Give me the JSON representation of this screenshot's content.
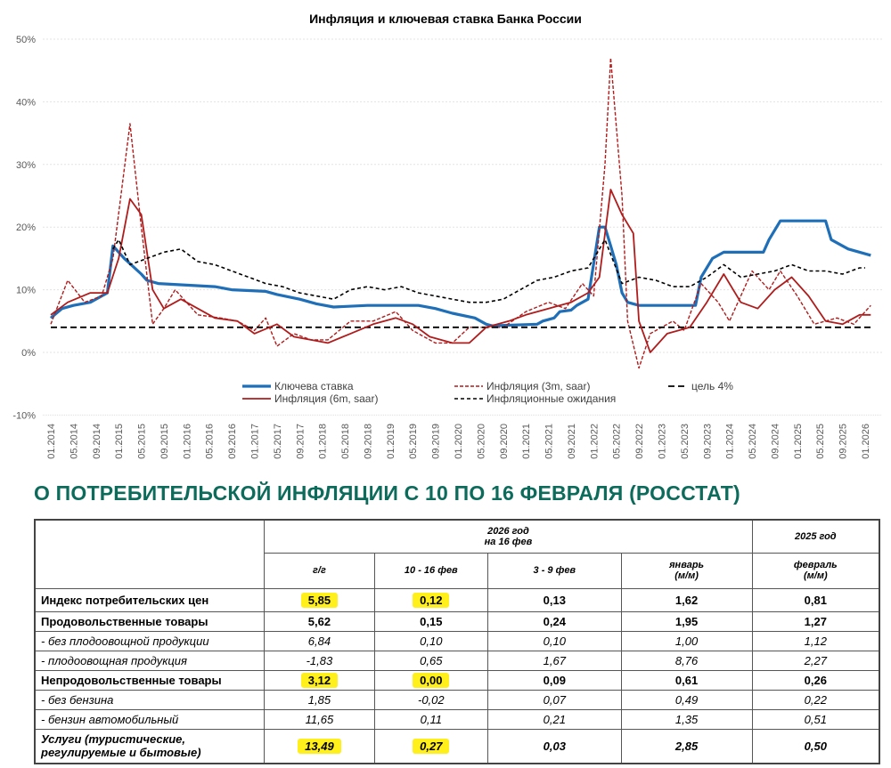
{
  "chart_data": {
    "type": "line",
    "title": "Инфляция и ключевая ставка Банка России",
    "ylim": [
      -10,
      50
    ],
    "yticks": [
      "-10%",
      "0%",
      "10%",
      "20%",
      "30%",
      "40%",
      "50%"
    ],
    "ytick_values": [
      -10,
      0,
      10,
      20,
      30,
      40,
      50
    ],
    "xrange": [
      "2014-01",
      "2026-02"
    ],
    "xticks": [
      "01.2014",
      "05.2014",
      "09.2014",
      "01.2015",
      "05.2015",
      "09.2015",
      "01.2016",
      "05.2016",
      "09.2016",
      "01.2017",
      "05.2017",
      "09.2017",
      "01.2018",
      "05.2018",
      "09.2018",
      "01.2019",
      "05.2019",
      "09.2019",
      "01.2020",
      "05.2020",
      "09.2020",
      "01.2021",
      "05.2021",
      "09.2021",
      "01.2022",
      "05.2022",
      "09.2022",
      "01.2023",
      "05.2023",
      "09.2023",
      "01.2024",
      "05.2024",
      "09.2024",
      "01.2025",
      "05.2025",
      "09.2025",
      "01.2026"
    ],
    "grid": true,
    "legend_placement": "bottom",
    "series": [
      {
        "name": "Ключева ставка",
        "color": "#1f6fb8",
        "style": "solid-thick",
        "points": [
          [
            "2014-01",
            5.5
          ],
          [
            "2014-03",
            7
          ],
          [
            "2014-05",
            7.5
          ],
          [
            "2014-08",
            8
          ],
          [
            "2014-11",
            9.5
          ],
          [
            "2014-12",
            17
          ],
          [
            "2015-02",
            15
          ],
          [
            "2015-05",
            12.5
          ],
          [
            "2015-06",
            11.5
          ],
          [
            "2015-08",
            11
          ],
          [
            "2016-06",
            10.5
          ],
          [
            "2016-09",
            10
          ],
          [
            "2017-03",
            9.75
          ],
          [
            "2017-05",
            9.25
          ],
          [
            "2017-09",
            8.5
          ],
          [
            "2017-12",
            7.75
          ],
          [
            "2018-03",
            7.25
          ],
          [
            "2018-09",
            7.5
          ],
          [
            "2019-06",
            7.5
          ],
          [
            "2019-09",
            7
          ],
          [
            "2019-12",
            6.25
          ],
          [
            "2020-04",
            5.5
          ],
          [
            "2020-06",
            4.5
          ],
          [
            "2020-07",
            4.25
          ],
          [
            "2021-03",
            4.5
          ],
          [
            "2021-04",
            5
          ],
          [
            "2021-06",
            5.5
          ],
          [
            "2021-07",
            6.5
          ],
          [
            "2021-09",
            6.75
          ],
          [
            "2021-10",
            7.5
          ],
          [
            "2021-12",
            8.5
          ],
          [
            "2022-02",
            20
          ],
          [
            "2022-03",
            20
          ],
          [
            "2022-04",
            17
          ],
          [
            "2022-05",
            14
          ],
          [
            "2022-06",
            9.5
          ],
          [
            "2022-07",
            8
          ],
          [
            "2022-09",
            7.5
          ],
          [
            "2023-07",
            7.5
          ],
          [
            "2023-08",
            12
          ],
          [
            "2023-10",
            15
          ],
          [
            "2023-12",
            16
          ],
          [
            "2024-07",
            16
          ],
          [
            "2024-08",
            18
          ],
          [
            "2024-10",
            21
          ],
          [
            "2025-06",
            21
          ],
          [
            "2025-07",
            18
          ],
          [
            "2025-09",
            17
          ],
          [
            "2025-10",
            16.5
          ],
          [
            "2026-02",
            15.5
          ]
        ]
      },
      {
        "name": "Инфляция (3m, saar)",
        "color": "#b01c1c",
        "style": "dashed",
        "points": [
          [
            "2014-01",
            4.5
          ],
          [
            "2014-04",
            11.5
          ],
          [
            "2014-07",
            8
          ],
          [
            "2014-10",
            9
          ],
          [
            "2014-12",
            15
          ],
          [
            "2015-03",
            36.5
          ],
          [
            "2015-05",
            20
          ],
          [
            "2015-07",
            4.5
          ],
          [
            "2015-09",
            7
          ],
          [
            "2015-11",
            10
          ],
          [
            "2016-03",
            6
          ],
          [
            "2016-07",
            5.5
          ],
          [
            "2016-10",
            5
          ],
          [
            "2017-01",
            3.5
          ],
          [
            "2017-03",
            5.5
          ],
          [
            "2017-05",
            1
          ],
          [
            "2017-08",
            3
          ],
          [
            "2017-11",
            2
          ],
          [
            "2018-02",
            2
          ],
          [
            "2018-06",
            5
          ],
          [
            "2018-10",
            5
          ],
          [
            "2019-02",
            6.5
          ],
          [
            "2019-05",
            3.5
          ],
          [
            "2019-09",
            1.5
          ],
          [
            "2019-12",
            1.5
          ],
          [
            "2020-03",
            4
          ],
          [
            "2020-06",
            4
          ],
          [
            "2020-09",
            4
          ],
          [
            "2021-01",
            6.5
          ],
          [
            "2021-05",
            8
          ],
          [
            "2021-08",
            7
          ],
          [
            "2021-11",
            11
          ],
          [
            "2022-01",
            9
          ],
          [
            "2022-03",
            30
          ],
          [
            "2022-04",
            47
          ],
          [
            "2022-06",
            25
          ],
          [
            "2022-07",
            5
          ],
          [
            "2022-09",
            -2.5
          ],
          [
            "2022-11",
            3
          ],
          [
            "2023-03",
            5
          ],
          [
            "2023-05",
            3.5
          ],
          [
            "2023-08",
            11
          ],
          [
            "2023-11",
            8
          ],
          [
            "2024-01",
            5
          ],
          [
            "2024-05",
            13
          ],
          [
            "2024-08",
            10
          ],
          [
            "2024-10",
            13
          ],
          [
            "2025-01",
            9
          ],
          [
            "2025-04",
            4.5
          ],
          [
            "2025-08",
            5.5
          ],
          [
            "2025-11",
            4.5
          ],
          [
            "2026-02",
            7.5
          ]
        ]
      },
      {
        "name": "цель 4%",
        "color": "#000000",
        "style": "dashed-long",
        "points": [
          [
            "2014-01",
            4
          ],
          [
            "2026-02",
            4
          ]
        ]
      },
      {
        "name": "Инфляция (6m, saar)",
        "color": "#b01c1c",
        "style": "solid",
        "points": [
          [
            "2014-01",
            6
          ],
          [
            "2014-04",
            8
          ],
          [
            "2014-08",
            9.5
          ],
          [
            "2014-11",
            9.5
          ],
          [
            "2015-01",
            15
          ],
          [
            "2015-03",
            24.5
          ],
          [
            "2015-05",
            22
          ],
          [
            "2015-07",
            10
          ],
          [
            "2015-09",
            7
          ],
          [
            "2015-12",
            8.5
          ],
          [
            "2016-02",
            7.5
          ],
          [
            "2016-06",
            5.5
          ],
          [
            "2016-10",
            5
          ],
          [
            "2017-01",
            3
          ],
          [
            "2017-05",
            4.5
          ],
          [
            "2017-08",
            2.5
          ],
          [
            "2017-11",
            2
          ],
          [
            "2018-02",
            1.5
          ],
          [
            "2018-06",
            3
          ],
          [
            "2018-10",
            4.5
          ],
          [
            "2019-02",
            5.5
          ],
          [
            "2019-05",
            4.5
          ],
          [
            "2019-08",
            2.5
          ],
          [
            "2019-12",
            1.5
          ],
          [
            "2020-03",
            1.5
          ],
          [
            "2020-06",
            4
          ],
          [
            "2020-10",
            5
          ],
          [
            "2021-01",
            6
          ],
          [
            "2021-05",
            7
          ],
          [
            "2021-09",
            8
          ],
          [
            "2021-12",
            9.5
          ],
          [
            "2022-02",
            12
          ],
          [
            "2022-04",
            26
          ],
          [
            "2022-06",
            22
          ],
          [
            "2022-08",
            19
          ],
          [
            "2022-09",
            5
          ],
          [
            "2022-11",
            0
          ],
          [
            "2023-02",
            3
          ],
          [
            "2023-06",
            4
          ],
          [
            "2023-09",
            8
          ],
          [
            "2023-12",
            12.5
          ],
          [
            "2024-03",
            8
          ],
          [
            "2024-06",
            7
          ],
          [
            "2024-09",
            10
          ],
          [
            "2024-12",
            12
          ],
          [
            "2025-03",
            9
          ],
          [
            "2025-06",
            5
          ],
          [
            "2025-09",
            4.5
          ],
          [
            "2025-12",
            6
          ],
          [
            "2026-02",
            6
          ]
        ]
      },
      {
        "name": "Инфляционные ожидания",
        "color": "#000000",
        "style": "dotted",
        "points": [
          [
            "2014-12",
            16.5
          ],
          [
            "2015-01",
            18
          ],
          [
            "2015-03",
            14
          ],
          [
            "2015-06",
            15
          ],
          [
            "2015-09",
            16
          ],
          [
            "2015-12",
            16.5
          ],
          [
            "2016-03",
            14.5
          ],
          [
            "2016-06",
            14
          ],
          [
            "2016-09",
            13
          ],
          [
            "2016-12",
            12
          ],
          [
            "2017-03",
            11
          ],
          [
            "2017-06",
            10.5
          ],
          [
            "2017-09",
            9.5
          ],
          [
            "2017-12",
            9
          ],
          [
            "2018-03",
            8.5
          ],
          [
            "2018-06",
            10
          ],
          [
            "2018-09",
            10.5
          ],
          [
            "2018-12",
            10
          ],
          [
            "2019-03",
            10.5
          ],
          [
            "2019-06",
            9.5
          ],
          [
            "2019-09",
            9
          ],
          [
            "2019-12",
            8.5
          ],
          [
            "2020-03",
            8
          ],
          [
            "2020-06",
            8
          ],
          [
            "2020-09",
            8.5
          ],
          [
            "2020-12",
            10
          ],
          [
            "2021-03",
            11.5
          ],
          [
            "2021-06",
            12
          ],
          [
            "2021-09",
            13
          ],
          [
            "2021-12",
            13.5
          ],
          [
            "2022-03",
            18
          ],
          [
            "2022-06",
            11
          ],
          [
            "2022-09",
            12
          ],
          [
            "2022-12",
            11.5
          ],
          [
            "2023-03",
            10.5
          ],
          [
            "2023-06",
            10.5
          ],
          [
            "2023-09",
            12
          ],
          [
            "2023-12",
            14
          ],
          [
            "2024-03",
            12
          ],
          [
            "2024-06",
            12.5
          ],
          [
            "2024-09",
            13
          ],
          [
            "2024-12",
            14
          ],
          [
            "2025-03",
            13
          ],
          [
            "2025-06",
            13
          ],
          [
            "2025-09",
            12.5
          ],
          [
            "2025-12",
            13.5
          ],
          [
            "2026-01",
            13.5
          ]
        ]
      }
    ]
  },
  "table": {
    "heading": "О ПОТРЕБИТЕЛЬСКОЙ ИНФЛЯЦИИ С 10 ПО 16 ФЕВРАЛЯ (РОССТАТ)",
    "group_2026": "2026 год\nна 16 фев",
    "group_2026_line1": "2026 год",
    "group_2026_line2": "на 16 фев",
    "group_2025": "2025 год",
    "columns": [
      "г/г",
      "10 - 16 фев",
      "3 - 9 фев",
      "январь\n(м/м)",
      "февраль\n(м/м)"
    ],
    "highlight_color": "#ffef1a",
    "rows": [
      {
        "label": "Индекс потребительских цен",
        "style": "bold",
        "values": [
          "5,85",
          "0,12",
          "0,13",
          "1,62",
          "0,81"
        ],
        "highlight": [
          0,
          1
        ]
      },
      {
        "label": "Продовольственные товары",
        "style": "bold",
        "values": [
          "5,62",
          "0,15",
          "0,24",
          "1,95",
          "1,27"
        ],
        "highlight": []
      },
      {
        "label": "- без плодоовощной продукции",
        "style": "ital",
        "values": [
          "6,84",
          "0,10",
          "0,10",
          "1,00",
          "1,12"
        ],
        "highlight": []
      },
      {
        "label": "- плодоовощная продукция",
        "style": "ital",
        "values": [
          "-1,83",
          "0,65",
          "1,67",
          "8,76",
          "2,27"
        ],
        "highlight": []
      },
      {
        "label": "Непродовольственные товары",
        "style": "bold",
        "values": [
          "3,12",
          "0,00",
          "0,09",
          "0,61",
          "0,26"
        ],
        "highlight": [
          0,
          1
        ]
      },
      {
        "label": "- без бензина",
        "style": "ital",
        "values": [
          "1,85",
          "-0,02",
          "0,07",
          "0,49",
          "0,22"
        ],
        "highlight": []
      },
      {
        "label": "- бензин автомобильный",
        "style": "ital",
        "values": [
          "11,65",
          "0,11",
          "0,21",
          "1,35",
          "0,51"
        ],
        "highlight": []
      },
      {
        "label": "Услуги (туристические, регулируемые и бытовые)",
        "style": "boldital",
        "values": [
          "13,49",
          "0,27",
          "0,03",
          "2,85",
          "0,50"
        ],
        "highlight": [
          0,
          1
        ]
      }
    ]
  }
}
